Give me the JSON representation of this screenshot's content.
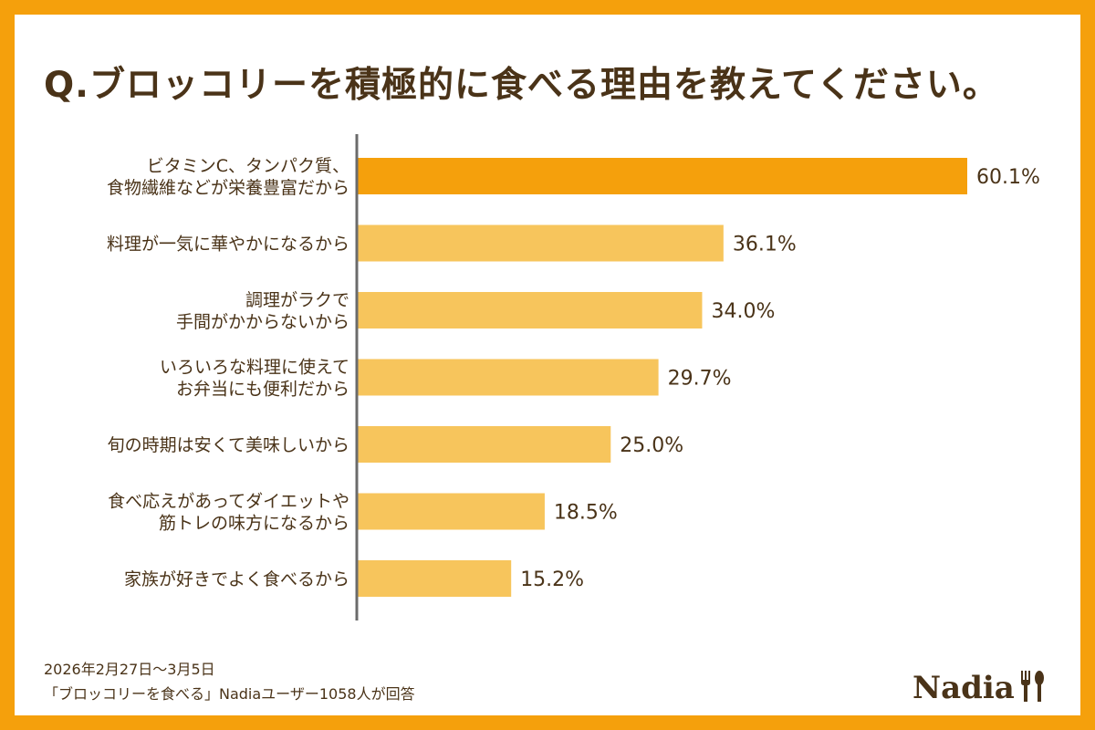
{
  "title": "Q.ブロッコリーを積極的に食べる理由を教えてください。",
  "footer": {
    "line1": "2026年2月27日〜3月5日",
    "line2": "「ブロッコリーを食べる」Nadiaユーザー1058人が回答"
  },
  "logo": {
    "text": "Nadia",
    "icon": "fork-spoon-icon"
  },
  "colors": {
    "frame": "#F5A00C",
    "highlight_bar": "#F5A00C",
    "highlight_value": "#F5B74A",
    "bar": "#F7C55C",
    "text": "#4A3318",
    "axis": "#6B6B6B"
  },
  "chart_data": {
    "type": "bar",
    "orientation": "horizontal",
    "categories": [
      [
        "ビタミンC、タンパク質、",
        "食物繊維などが栄養豊富だから"
      ],
      [
        "料理が一気に華やかになるから"
      ],
      [
        "調理がラクで",
        "手間がかからないから"
      ],
      [
        "いろいろな料理に使えて",
        "お弁当にも便利だから"
      ],
      [
        "旬の時期は安くて美味しいから"
      ],
      [
        "食べ応えがあってダイエットや",
        "筋トレの味方になるから"
      ],
      [
        "家族が好きでよく食べるから"
      ]
    ],
    "values": [
      60.1,
      36.1,
      34.0,
      29.7,
      25.0,
      18.5,
      15.2
    ],
    "value_labels": [
      "60.1%",
      "36.1%",
      "34.0%",
      "29.7%",
      "25.0%",
      "18.5%",
      "15.2%"
    ],
    "unit": "%",
    "highlight_index": 0,
    "xlim": [
      0,
      60.1
    ],
    "grid": false,
    "legend": "none"
  }
}
